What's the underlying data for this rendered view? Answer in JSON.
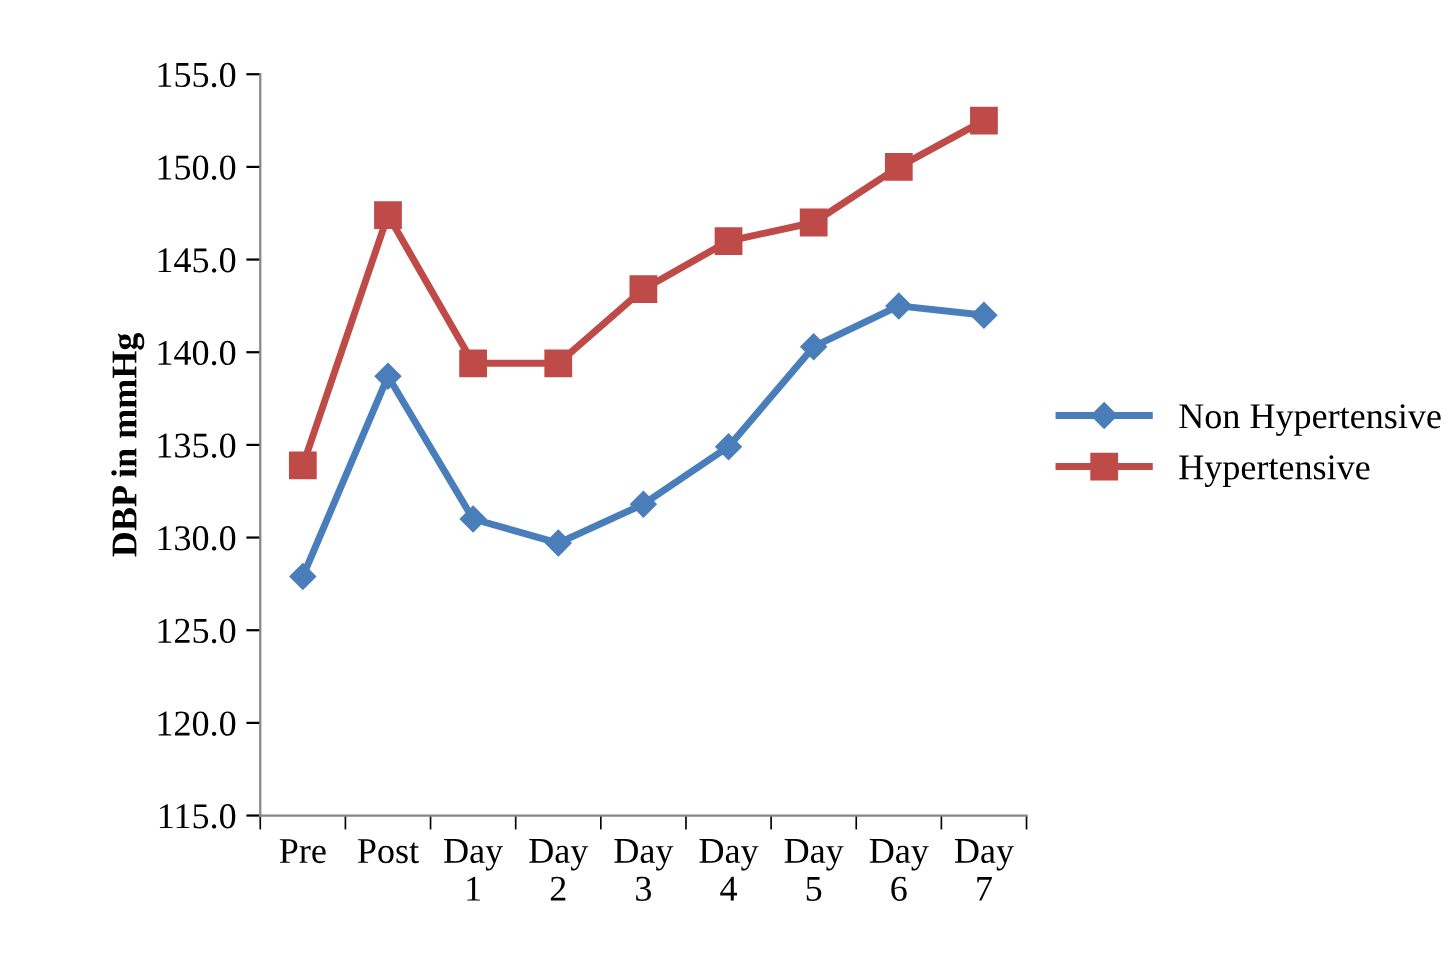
{
  "chart_data": {
    "type": "line",
    "ylabel": "DBP in mmHg",
    "categories": [
      "Pre",
      "Post",
      "Day\n1",
      "Day\n2",
      "Day\n3",
      "Day\n4",
      "Day\n5",
      "Day\n6",
      "Day\n7"
    ],
    "series": [
      {
        "name": "Non Hypertensive",
        "color": "#4a7ebb",
        "marker": "diamond",
        "values": [
          127.9,
          138.7,
          131.0,
          129.7,
          131.8,
          134.9,
          140.3,
          142.5,
          142.0
        ]
      },
      {
        "name": "Hypertensive",
        "color": "#be4b48",
        "marker": "square",
        "values": [
          133.9,
          147.4,
          139.4,
          139.4,
          143.4,
          146.0,
          147.0,
          150.0,
          152.5
        ]
      }
    ],
    "ylim": [
      115,
      155
    ],
    "yticks": [
      {
        "value": 115,
        "label": "115.0"
      },
      {
        "value": 120,
        "label": "120.0"
      },
      {
        "value": 125,
        "label": "125.0"
      },
      {
        "value": 130,
        "label": "130.0"
      },
      {
        "value": 135,
        "label": "135.0"
      },
      {
        "value": 140,
        "label": "140.0"
      },
      {
        "value": 145,
        "label": "145.0"
      },
      {
        "value": 150,
        "label": "150.0"
      },
      {
        "value": 155,
        "label": "155.0"
      }
    ],
    "legend": "right",
    "grid": false,
    "line_style": "solid"
  }
}
